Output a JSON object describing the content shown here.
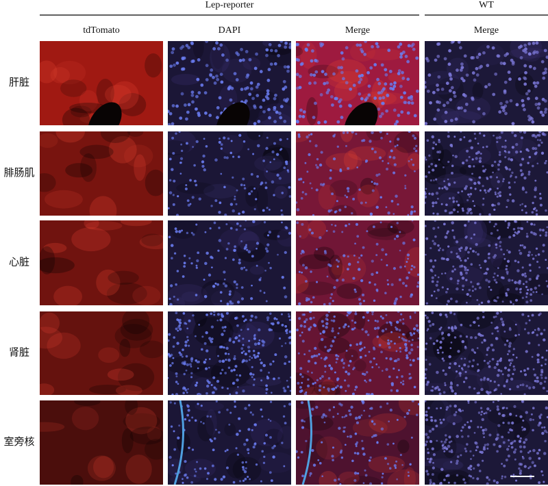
{
  "header": {
    "groups": [
      "Lep-reporter",
      "WT"
    ],
    "columns": [
      "tdTomato",
      "DAPI",
      "Merge",
      "Merge"
    ]
  },
  "rows": [
    "肝脏",
    "腓肠肌",
    "心脏",
    "肾脏",
    "室旁核"
  ]
}
